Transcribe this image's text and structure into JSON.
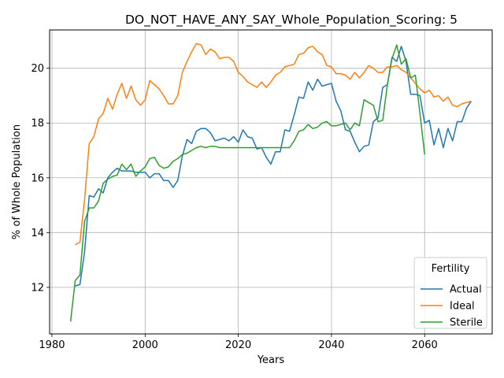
{
  "chart_data": {
    "type": "line",
    "title": "DO_NOT_HAVE_ANY_SAY_Whole_Population_Scoring: 5",
    "xlabel": "Years",
    "ylabel": "% of Whole Population",
    "xlim": [
      1979.5,
      2074.5
    ],
    "ylim": [
      10.3,
      21.4
    ],
    "xticks": [
      1980,
      2000,
      2020,
      2040,
      2060
    ],
    "yticks": [
      12,
      14,
      16,
      18,
      20
    ],
    "grid": true,
    "legend": {
      "title": "Fertility",
      "placement": "lower-right"
    },
    "series": [
      {
        "name": "Actual",
        "color": "#1f77b4",
        "x": [
          1985,
          1986,
          1987,
          1988,
          1989,
          1990,
          1991,
          1992,
          1993,
          1994,
          1995,
          1996,
          1997,
          1998,
          1999,
          2000,
          2001,
          2002,
          2003,
          2004,
          2005,
          2006,
          2007,
          2008,
          2009,
          2010,
          2011,
          2012,
          2013,
          2014,
          2015,
          2016,
          2017,
          2018,
          2019,
          2020,
          2021,
          2022,
          2023,
          2024,
          2025,
          2026,
          2027,
          2028,
          2029,
          2030,
          2031,
          2032,
          2033,
          2034,
          2035,
          2036,
          2037,
          2038,
          2039,
          2040,
          2041,
          2042,
          2043,
          2044,
          2045,
          2046,
          2047,
          2048,
          2049,
          2050,
          2051,
          2052,
          2053,
          2054,
          2055,
          2056,
          2057,
          2058,
          2059,
          2060,
          2061,
          2062,
          2063,
          2064,
          2065,
          2066,
          2067,
          2068,
          2069,
          2070
        ],
        "values": [
          12.05,
          12.1,
          13.3,
          15.35,
          15.3,
          15.6,
          15.45,
          16.0,
          16.2,
          16.35,
          16.25,
          16.25,
          16.25,
          16.2,
          16.2,
          16.2,
          16.0,
          16.15,
          16.15,
          15.9,
          15.9,
          15.65,
          15.9,
          16.8,
          17.4,
          17.25,
          17.7,
          17.8,
          17.8,
          17.65,
          17.35,
          17.4,
          17.45,
          17.35,
          17.5,
          17.3,
          17.75,
          17.5,
          17.45,
          17.05,
          17.1,
          16.75,
          16.5,
          16.95,
          16.95,
          17.75,
          17.7,
          18.3,
          18.95,
          18.9,
          19.5,
          19.2,
          19.6,
          19.35,
          19.4,
          19.45,
          18.8,
          18.45,
          17.75,
          17.7,
          17.3,
          16.95,
          17.15,
          17.2,
          18.05,
          18.2,
          19.3,
          19.4,
          20.4,
          20.25,
          20.8,
          20.25,
          19.05,
          19.05,
          19.0,
          18.0,
          18.1,
          17.2,
          17.8,
          17.1,
          17.8,
          17.35,
          18.05,
          18.05,
          18.55,
          18.8
        ]
      },
      {
        "name": "Ideal",
        "color": "#ff7f0e",
        "x": [
          1985,
          1986,
          1987,
          1988,
          1989,
          1990,
          1991,
          1992,
          1993,
          1994,
          1995,
          1996,
          1997,
          1998,
          1999,
          2000,
          2001,
          2002,
          2003,
          2004,
          2005,
          2006,
          2007,
          2008,
          2009,
          2010,
          2011,
          2012,
          2013,
          2014,
          2015,
          2016,
          2017,
          2018,
          2019,
          2020,
          2021,
          2022,
          2023,
          2024,
          2025,
          2026,
          2027,
          2028,
          2029,
          2030,
          2031,
          2032,
          2033,
          2034,
          2035,
          2036,
          2037,
          2038,
          2039,
          2040,
          2041,
          2042,
          2043,
          2044,
          2045,
          2046,
          2047,
          2048,
          2049,
          2050,
          2051,
          2052,
          2053,
          2054,
          2055,
          2056,
          2057,
          2058,
          2059,
          2060,
          2061,
          2062,
          2063,
          2064,
          2065,
          2066,
          2067,
          2068,
          2069,
          2070
        ],
        "values": [
          13.55,
          13.65,
          15.2,
          17.25,
          17.5,
          18.15,
          18.35,
          18.9,
          18.5,
          19.05,
          19.45,
          18.9,
          19.35,
          18.85,
          18.65,
          18.85,
          19.55,
          19.4,
          19.25,
          19.0,
          18.7,
          18.7,
          19.0,
          19.85,
          20.25,
          20.6,
          20.9,
          20.85,
          20.5,
          20.7,
          20.6,
          20.35,
          20.4,
          20.4,
          20.25,
          19.85,
          19.7,
          19.5,
          19.4,
          19.3,
          19.5,
          19.3,
          19.5,
          19.75,
          19.85,
          20.05,
          20.1,
          20.15,
          20.5,
          20.55,
          20.75,
          20.8,
          20.6,
          20.5,
          20.1,
          20.05,
          19.8,
          19.8,
          19.75,
          19.6,
          19.85,
          19.65,
          19.85,
          20.1,
          20.0,
          19.85,
          19.85,
          20.05,
          20.05,
          20.1,
          19.95,
          19.85,
          19.65,
          19.45,
          19.25,
          19.1,
          19.2,
          18.95,
          19.0,
          18.8,
          18.95,
          18.65,
          18.6,
          18.7,
          18.75,
          18.8
        ]
      },
      {
        "name": "Sterile",
        "color": "#2ca02c",
        "x": [
          1984,
          1985,
          1986,
          1987,
          1988,
          1989,
          1990,
          1991,
          1992,
          1993,
          1994,
          1995,
          1996,
          1997,
          1998,
          1999,
          2000,
          2001,
          2002,
          2003,
          2004,
          2005,
          2006,
          2007,
          2008,
          2009,
          2010,
          2011,
          2012,
          2013,
          2014,
          2015,
          2016,
          2017,
          2018,
          2019,
          2020,
          2021,
          2022,
          2023,
          2024,
          2025,
          2026,
          2027,
          2028,
          2029,
          2030,
          2031,
          2032,
          2033,
          2034,
          2035,
          2036,
          2037,
          2038,
          2039,
          2040,
          2041,
          2042,
          2043,
          2044,
          2045,
          2046,
          2047,
          2048,
          2049,
          2050,
          2051,
          2052,
          2053,
          2054,
          2055,
          2056,
          2057,
          2058,
          2059,
          2060
        ],
        "values": [
          10.75,
          12.25,
          12.45,
          14.4,
          14.9,
          14.9,
          15.15,
          15.8,
          15.95,
          16.05,
          16.1,
          16.5,
          16.3,
          16.5,
          16.05,
          16.25,
          16.4,
          16.7,
          16.75,
          16.45,
          16.35,
          16.4,
          16.6,
          16.7,
          16.85,
          16.9,
          17.0,
          17.1,
          17.15,
          17.1,
          17.15,
          17.15,
          17.1,
          17.1,
          17.1,
          17.1,
          17.1,
          17.1,
          17.1,
          17.1,
          17.1,
          17.1,
          17.1,
          17.1,
          17.1,
          17.1,
          17.1,
          17.1,
          17.35,
          17.7,
          17.75,
          17.95,
          17.8,
          17.85,
          18.0,
          18.05,
          17.9,
          17.9,
          17.95,
          18.0,
          17.75,
          18.0,
          17.9,
          18.85,
          18.75,
          18.65,
          18.05,
          18.1,
          19.4,
          20.35,
          20.85,
          20.15,
          20.35,
          19.65,
          19.75,
          18.35,
          16.85
        ]
      }
    ]
  }
}
